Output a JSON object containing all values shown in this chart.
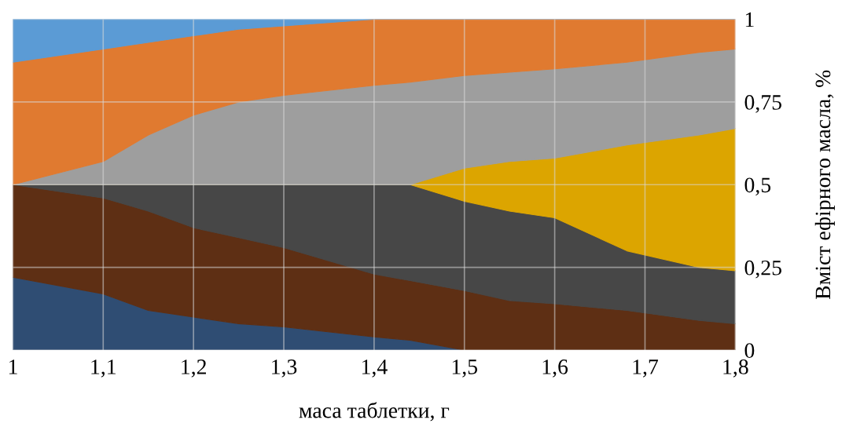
{
  "chart_data": {
    "type": "area",
    "stacked": true,
    "xlabel": "маса таблетки, г",
    "ylabel": "Вміст ефірного масла, %",
    "x": [
      1,
      1.1,
      1.15,
      1.2,
      1.25,
      1.3,
      1.4,
      1.44,
      1.5,
      1.55,
      1.6,
      1.68,
      1.76,
      1.8
    ],
    "series": [
      {
        "color": "#2f4d73",
        "values": [
          0.22,
          0.17,
          0.12,
          0.1,
          0.08,
          0.07,
          0.04,
          0.03,
          0,
          0,
          0,
          0,
          0,
          0
        ]
      },
      {
        "color": "#5e2f14",
        "values": [
          0.28,
          0.29,
          0.3,
          0.27,
          0.26,
          0.24,
          0.19,
          0.18,
          0.18,
          0.15,
          0.14,
          0.12,
          0.09,
          0.08
        ]
      },
      {
        "color": "#474747",
        "values": [
          0,
          0.04,
          0.08,
          0.13,
          0.16,
          0.19,
          0.27,
          0.29,
          0.27,
          0.27,
          0.26,
          0.18,
          0.16,
          0.16
        ]
      },
      {
        "color": "#dca500",
        "values": [
          0,
          0,
          0,
          0,
          0,
          0,
          0,
          0,
          0.1,
          0.15,
          0.18,
          0.32,
          0.4,
          0.43
        ]
      },
      {
        "color": "#9e9e9e",
        "values": [
          0,
          0.07,
          0.15,
          0.21,
          0.25,
          0.27,
          0.3,
          0.31,
          0.28,
          0.27,
          0.27,
          0.25,
          0.25,
          0.24
        ]
      },
      {
        "color": "#e07a30",
        "values": [
          0.37,
          0.34,
          0.28,
          0.24,
          0.22,
          0.21,
          0.2,
          0.19,
          0.17,
          0.16,
          0.15,
          0.13,
          0.1,
          0.09
        ]
      },
      {
        "color": "#5b9bd5",
        "values": [
          0.13,
          0.09,
          0.07,
          0.05,
          0.03,
          0.02,
          0,
          0,
          0,
          0,
          0,
          0,
          0,
          0
        ]
      }
    ],
    "xlim": [
      1,
      1.8
    ],
    "ylim": [
      0,
      1
    ],
    "xticks": [
      1,
      {
        "value": 1.1,
        "label": "1,1"
      },
      {
        "value": 1.2,
        "label": "1,2"
      },
      {
        "value": 1.3,
        "label": "1,3"
      },
      {
        "value": 1.4,
        "label": "1,4"
      },
      {
        "value": 1.5,
        "label": "1,5"
      },
      {
        "value": 1.6,
        "label": "1,6"
      },
      {
        "value": 1.7,
        "label": "1,7"
      },
      {
        "value": 1.8,
        "label": "1,8"
      }
    ],
    "yticks": [
      0,
      {
        "value": 0.25,
        "label": "0,25"
      },
      {
        "value": 0.5,
        "label": "0,5"
      },
      {
        "value": 0.75,
        "label": "0,75"
      },
      1
    ],
    "grid": true,
    "legend": false
  }
}
